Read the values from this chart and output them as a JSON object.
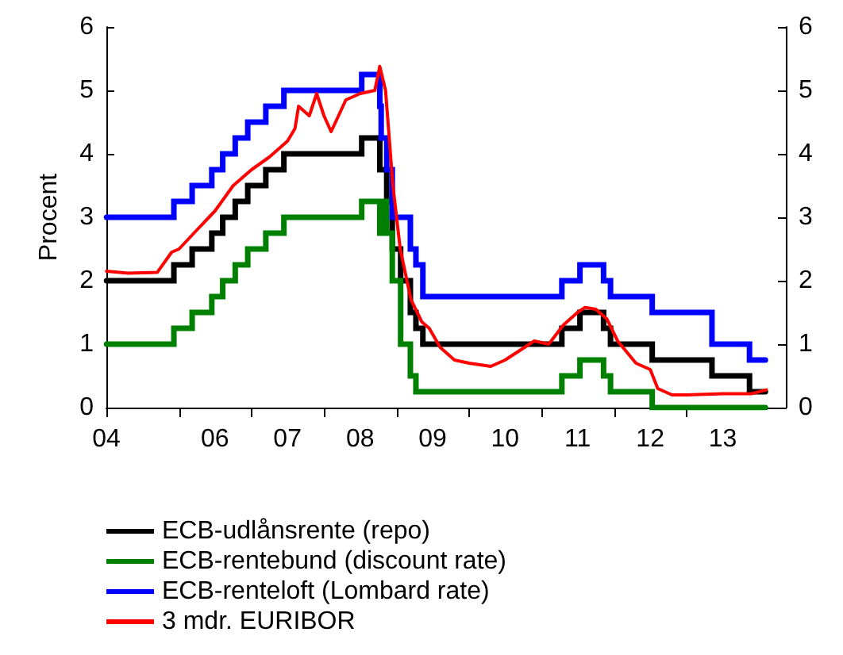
{
  "chart_data": {
    "type": "step",
    "ylabel": "Procent",
    "xlim": [
      "2004-12-31",
      "2014-05-15"
    ],
    "xticks": [
      {
        "value": "2004-12-31",
        "label": "04"
      },
      {
        "value": "2006-01-01",
        "label": null
      },
      {
        "value": "2007-01-01",
        "label": null
      },
      {
        "value": "2008-01-01",
        "label": null
      },
      {
        "value": "2009-01-01",
        "label": null
      },
      {
        "value": "2010-01-01",
        "label": null
      },
      {
        "value": "2011-01-01",
        "label": null
      },
      {
        "value": "2012-01-01",
        "label": null
      },
      {
        "value": "2013-01-01",
        "label": null
      },
      {
        "value": "2006-07-01",
        "label": "06"
      },
      {
        "value": "2007-07-01",
        "label": "07"
      },
      {
        "value": "2008-07-01",
        "label": "08"
      },
      {
        "value": "2009-07-01",
        "label": "09"
      },
      {
        "value": "2010-07-01",
        "label": "10"
      },
      {
        "value": "2011-07-01",
        "label": "11"
      },
      {
        "value": "2012-07-01",
        "label": "12"
      },
      {
        "value": "2013-07-01",
        "label": "13"
      }
    ],
    "ylim": [
      0,
      6
    ],
    "yticks": [
      0,
      1,
      2,
      3,
      4,
      5,
      6
    ],
    "y2lim": [
      0,
      6
    ],
    "y2ticks": [
      0,
      1,
      2,
      3,
      4,
      5,
      6
    ],
    "grid": false,
    "legend": "bottom",
    "marker": "none",
    "series": [
      {
        "name": "ECB-udlånsrente (repo)",
        "color": "#000000",
        "x": [
          "2005-01-01",
          "2005-12-06",
          "2006-03-08",
          "2006-06-15",
          "2006-08-09",
          "2006-10-11",
          "2006-12-13",
          "2007-03-14",
          "2007-06-13",
          "2008-07-09",
          "2008-10-08",
          "2008-11-12",
          "2008-12-10",
          "2009-01-21",
          "2009-03-11",
          "2009-04-08",
          "2009-05-13",
          "2011-04-13",
          "2011-07-13",
          "2011-11-09",
          "2011-12-14",
          "2012-07-11",
          "2013-05-08",
          "2013-11-13",
          "2014-02-01"
        ],
        "values": [
          2,
          2.25,
          2.5,
          2.75,
          3,
          3.25,
          3.5,
          3.75,
          4,
          4.25,
          3.75,
          3.25,
          2.5,
          2,
          1.5,
          1.25,
          1,
          1.25,
          1.5,
          1.25,
          1,
          0.75,
          0.5,
          0.25,
          0.25
        ]
      },
      {
        "name": "ECB-rentebund (discount rate)",
        "color": "#008000",
        "x": [
          "2005-01-01",
          "2005-12-06",
          "2006-03-08",
          "2006-06-15",
          "2006-08-09",
          "2006-10-11",
          "2006-12-13",
          "2007-03-14",
          "2007-06-13",
          "2008-07-09",
          "2008-10-08",
          "2008-10-15",
          "2008-11-12",
          "2008-12-10",
          "2009-01-21",
          "2009-03-11",
          "2009-04-08",
          "2011-04-13",
          "2011-07-13",
          "2011-11-09",
          "2011-12-14",
          "2012-07-11",
          "2014-02-01"
        ],
        "values": [
          1,
          1.25,
          1.5,
          1.75,
          2,
          2.25,
          2.5,
          2.75,
          3,
          3.25,
          2.75,
          3.25,
          2.75,
          2,
          1,
          0.5,
          0.25,
          0.5,
          0.75,
          0.5,
          0.25,
          0,
          0
        ]
      },
      {
        "name": "ECB-renteloft (Lombard rate)",
        "color": "#0000ff",
        "x": [
          "2005-01-01",
          "2005-12-06",
          "2006-03-08",
          "2006-06-15",
          "2006-08-09",
          "2006-10-11",
          "2006-12-13",
          "2007-03-14",
          "2007-06-13",
          "2008-07-09",
          "2008-10-08",
          "2008-10-15",
          "2008-11-12",
          "2008-12-10",
          "2009-03-11",
          "2009-04-08",
          "2009-05-13",
          "2011-04-13",
          "2011-07-13",
          "2011-11-09",
          "2011-12-14",
          "2012-07-11",
          "2013-05-08",
          "2013-11-13",
          "2014-02-01"
        ],
        "values": [
          3,
          3.25,
          3.5,
          3.75,
          4,
          4.25,
          4.5,
          4.75,
          5,
          5.25,
          4.75,
          4.25,
          3.75,
          3,
          2.5,
          2.25,
          1.75,
          2,
          2.25,
          2,
          1.75,
          1.5,
          1,
          0.75,
          0.75
        ]
      },
      {
        "name": "3 mdr. EURIBOR",
        "type": "line",
        "color": "#ff0000",
        "x": [
          "2005-01-01",
          "2005-04-20",
          "2005-09-13",
          "2005-11-25",
          "2006-01-01",
          "2006-04-01",
          "2006-07-01",
          "2006-10-01",
          "2007-01-01",
          "2007-04-01",
          "2007-07-01",
          "2007-08-08",
          "2007-08-26",
          "2007-10-19",
          "2007-11-25",
          "2008-01-01",
          "2008-02-06",
          "2008-03-14",
          "2008-04-20",
          "2008-07-01",
          "2008-09-13",
          "2008-10-08",
          "2008-11-06",
          "2008-12-13",
          "2009-01-19",
          "2009-03-14",
          "2009-05-08",
          "2009-06-14",
          "2009-08-08",
          "2009-10-19",
          "2010-01-01",
          "2010-04-20",
          "2010-07-01",
          "2010-09-13",
          "2010-11-25",
          "2011-02-06",
          "2011-04-20",
          "2011-07-01",
          "2011-08-08",
          "2011-10-01",
          "2011-11-25",
          "2012-01-19",
          "2012-04-20",
          "2012-07-01",
          "2012-08-08",
          "2012-10-19",
          "2013-01-01",
          "2013-07-01",
          "2013-11-25",
          "2014-02-06"
        ],
        "values": [
          2.15,
          2.12,
          2.13,
          2.45,
          2.5,
          2.8,
          3.1,
          3.5,
          3.75,
          3.95,
          4.2,
          4.4,
          4.75,
          4.6,
          4.95,
          4.6,
          4.35,
          4.6,
          4.85,
          4.95,
          5,
          5.38,
          5,
          3.5,
          2.5,
          1.7,
          1.35,
          1.25,
          0.95,
          0.75,
          0.7,
          0.65,
          0.75,
          0.9,
          1.05,
          1,
          1.3,
          1.5,
          1.58,
          1.55,
          1.4,
          1.05,
          0.7,
          0.6,
          0.3,
          0.2,
          0.2,
          0.22,
          0.22,
          0.28
        ]
      }
    ]
  }
}
